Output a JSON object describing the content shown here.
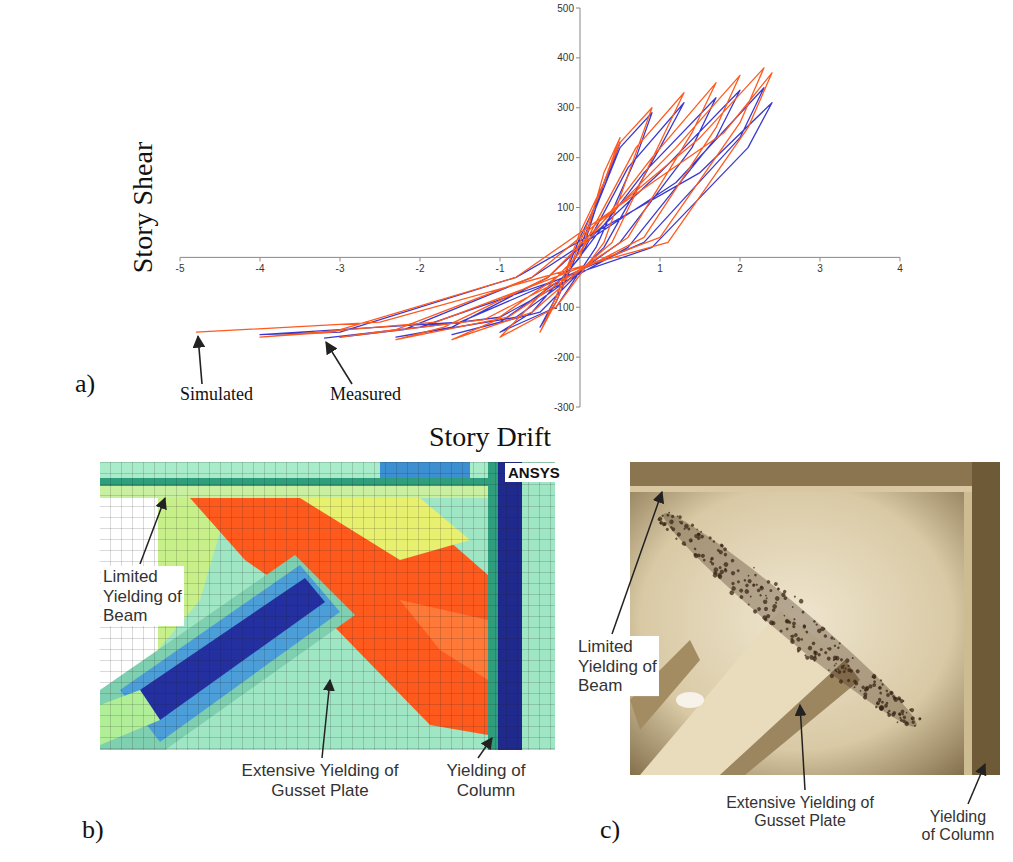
{
  "chart_data": {
    "type": "line",
    "annotations": [
      "a)"
    ],
    "x_label": "Story Drift",
    "y_label": "Story Shear",
    "xlim": [
      -5,
      4
    ],
    "xticks": [
      -5,
      -4,
      -3,
      -2,
      -1,
      1,
      2,
      3,
      4
    ],
    "ylim": [
      -300,
      500
    ],
    "yticks": [
      -300,
      -200,
      -100,
      100,
      200,
      300,
      400,
      500
    ],
    "series": [
      {
        "name": "Simulated",
        "color": "#ff5a1e",
        "x": [
          0,
          0.3,
          0.5,
          0.3,
          0,
          -0.3,
          -0.5,
          -0.3,
          0,
          0.5,
          0.9,
          0.7,
          0.3,
          -0.3,
          -1.0,
          -0.7,
          0,
          0.7,
          1.3,
          1.0,
          0.4,
          -0.6,
          -1.6,
          -1.1,
          -0.2,
          0.9,
          1.7,
          1.4,
          0.6,
          -0.9,
          -2.3,
          -1.7,
          -0.4,
          1.2,
          2.0,
          1.7,
          0.8,
          -1.2,
          -3.0,
          -2.3,
          -0.6,
          1.5,
          2.3,
          2.0,
          1.0,
          -1.8,
          -4.0,
          -3.1,
          -0.8,
          1.8,
          2.4,
          2.1,
          1.1,
          -2.5,
          -4.8
        ],
        "values": [
          0,
          170,
          240,
          150,
          50,
          -80,
          -150,
          -90,
          30,
          230,
          300,
          210,
          30,
          -100,
          -160,
          -110,
          10,
          220,
          330,
          230,
          30,
          -110,
          -165,
          -130,
          -30,
          200,
          350,
          250,
          40,
          -120,
          -165,
          -140,
          -40,
          220,
          365,
          260,
          40,
          -125,
          -160,
          -145,
          -40,
          240,
          380,
          270,
          40,
          -130,
          -160,
          -150,
          -40,
          250,
          370,
          260,
          30,
          -130,
          -150
        ]
      },
      {
        "name": "Measured",
        "color": "#3a3ad0",
        "x": [
          0,
          0.3,
          0.5,
          0.3,
          0,
          -0.3,
          -0.5,
          -0.3,
          0,
          0.5,
          0.9,
          0.7,
          0.2,
          -0.3,
          -1.0,
          -0.6,
          0,
          0.6,
          1.3,
          1.0,
          0.3,
          -0.5,
          -1.6,
          -1.0,
          -0.2,
          0.8,
          1.7,
          1.4,
          0.5,
          -0.8,
          -2.3,
          -1.6,
          -0.4,
          1.0,
          2.0,
          1.7,
          0.6,
          -1.0,
          -3.0,
          -2.2,
          -0.6,
          1.2,
          2.3,
          2.0,
          0.8,
          -1.5,
          -4.0,
          -3.0,
          -0.8,
          1.5,
          2.4,
          2.1,
          0.9,
          -2.0,
          -3.2
        ],
        "values": [
          0,
          150,
          230,
          140,
          40,
          -80,
          -140,
          -90,
          20,
          220,
          290,
          200,
          20,
          -100,
          -150,
          -110,
          0,
          180,
          310,
          220,
          20,
          -110,
          -155,
          -130,
          -40,
          170,
          320,
          220,
          30,
          -120,
          -160,
          -140,
          -40,
          170,
          335,
          240,
          20,
          -120,
          -160,
          -145,
          -40,
          150,
          340,
          240,
          30,
          -130,
          -155,
          -150,
          -40,
          170,
          310,
          220,
          20,
          -140,
          -162
        ]
      }
    ]
  },
  "fe_model": {
    "label": "b)",
    "logo": "ANSYS",
    "callouts": [
      {
        "lines": [
          "Limited",
          "Yielding of",
          "Beam"
        ]
      },
      {
        "lines": [
          "Extensive Yielding of",
          "Gusset Plate"
        ]
      },
      {
        "lines": [
          "Yielding of",
          "Column"
        ]
      }
    ]
  },
  "photo": {
    "label": "c)",
    "callouts": [
      {
        "lines": [
          "Limited",
          "Yielding of",
          "Beam"
        ]
      },
      {
        "lines": [
          "Extensive Yielding of",
          "Gusset Plate"
        ]
      },
      {
        "lines": [
          "Yielding",
          "of Column"
        ]
      }
    ]
  }
}
